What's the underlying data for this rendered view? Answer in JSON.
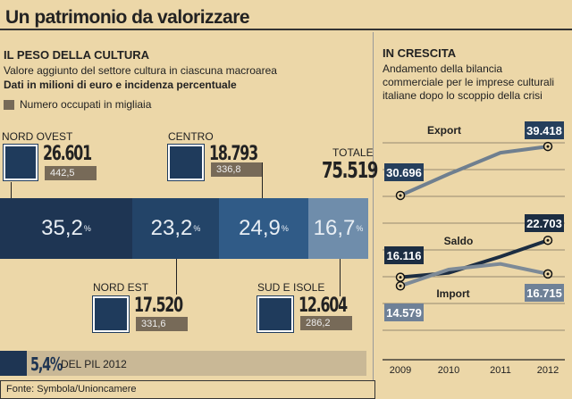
{
  "title": "Un patrimonio da valorizzare",
  "left": {
    "heading": "IL PESO DELLA CULTURA",
    "subtitle": "Valore aggiunto del settore cultura in ciascuna macroarea",
    "subtitle_bold": "Dati in milioni di euro e incidenza percentuale",
    "legend": "Numero occupati in migliaia",
    "regions": [
      {
        "name": "NORD OVEST",
        "value": "26.601",
        "occupati": "442,5",
        "share": "35,2",
        "color": "#1e3553"
      },
      {
        "name": "NORD EST",
        "value": "17.520",
        "occupati": "331,6",
        "share": "23,2",
        "color": "#234468"
      },
      {
        "name": "CENTRO",
        "value": "18.793",
        "occupati": "336,8",
        "share": "24,9",
        "color": "#305b87"
      },
      {
        "name": "SUD E ISOLE",
        "value": "12.604",
        "occupati": "286,2",
        "share": "16,7",
        "color": "#6f8dab"
      }
    ],
    "pct_sign": "%",
    "total_label": "TOTALE",
    "total_value": "75.519",
    "pil_value": "5,4%",
    "pil_label": "DEL PIL 2012",
    "source": "Fonte: Symbola/Unioncamere"
  },
  "chart_data": {
    "type": "line",
    "title": "IN CRESCITA",
    "subtitle": "Andamento della bilancia commerciale per le imprese culturali italiane dopo lo scoppio della crisi",
    "x": [
      "2009",
      "2010",
      "2011",
      "2012"
    ],
    "ylim": [
      0,
      50000
    ],
    "grid": true,
    "series": [
      {
        "name": "Export",
        "values": [
          30696,
          34500,
          38300,
          39418
        ],
        "labels": [
          "30.696",
          "39.418"
        ],
        "color": "#6f7f8f"
      },
      {
        "name": "Saldo",
        "values": [
          16116,
          16900,
          19800,
          22703
        ],
        "labels": [
          "16.116",
          "22.703"
        ],
        "color": "#1c2d42"
      },
      {
        "name": "Import",
        "values": [
          14579,
          17500,
          18500,
          16715
        ],
        "labels": [
          "14.579",
          "16.715"
        ],
        "color": "#7d8a97"
      }
    ]
  }
}
